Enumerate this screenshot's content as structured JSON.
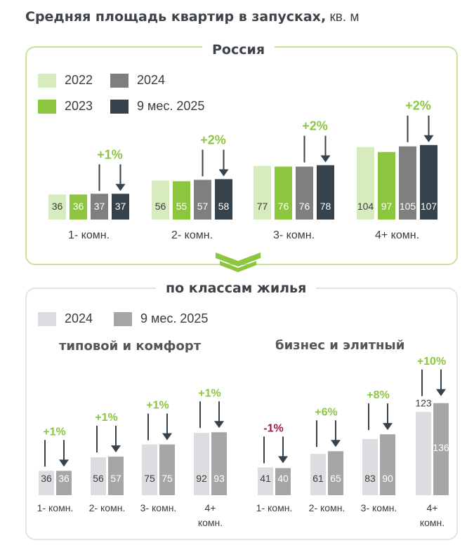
{
  "title": {
    "bold": "Средняя площадь квартир в запусках,",
    "unit": " кв. м"
  },
  "russia": {
    "title": "Россия",
    "legend": [
      {
        "label": "2022",
        "color": "#d7ecbe"
      },
      {
        "label": "2024",
        "color": "#7f7f7f"
      },
      {
        "label": "2023",
        "color": "#8cc63f"
      },
      {
        "label": "9 мес. 2025",
        "color": "#36434d"
      }
    ]
  },
  "classes": {
    "title": "по классам жилья",
    "legend": [
      {
        "label": "2024",
        "color": "#dcdde0"
      },
      {
        "label": "9 мес. 2025",
        "color": "#a6a6a6"
      }
    ],
    "sub1": "типовой и комфорт",
    "sub2": "бизнес и элитный"
  },
  "colors": {
    "positive": "#8cc63f",
    "negative": "#9b1c46",
    "arrow": "#36434d",
    "panel_border": "#c5e29c"
  },
  "chart_data": [
    {
      "type": "bar",
      "title": "Россия",
      "categories": [
        "1- комн.",
        "2- комн.",
        "3- комн.",
        "4+ комн."
      ],
      "series": [
        {
          "name": "2022",
          "values": [
            36,
            56,
            77,
            104
          ]
        },
        {
          "name": "2023",
          "values": [
            36,
            55,
            76,
            97
          ]
        },
        {
          "name": "2024",
          "values": [
            37,
            57,
            76,
            105
          ]
        },
        {
          "name": "9 мес. 2025",
          "values": [
            37,
            58,
            78,
            107
          ]
        }
      ],
      "changes": [
        "+1%",
        "+2%",
        "+2%",
        "+2%"
      ]
    },
    {
      "type": "bar",
      "title": "типовой и комфорт",
      "categories": [
        "1- комн.",
        "2- комн.",
        "3- комн.",
        "4+ комн."
      ],
      "series": [
        {
          "name": "2024",
          "values": [
            36,
            56,
            75,
            92
          ]
        },
        {
          "name": "9 мес. 2025",
          "values": [
            36,
            57,
            75,
            93
          ]
        }
      ],
      "changes": [
        "+1%",
        "+1%",
        "+1%",
        "+1%"
      ]
    },
    {
      "type": "bar",
      "title": "бизнес и элитный",
      "categories": [
        "1- комн.",
        "2- комн.",
        "3- комн.",
        "4+ комн."
      ],
      "series": [
        {
          "name": "2024",
          "values": [
            41,
            61,
            83,
            123
          ]
        },
        {
          "name": "9 мес. 2025",
          "values": [
            40,
            65,
            90,
            136
          ]
        }
      ],
      "changes": [
        "-1%",
        "+6%",
        "+8%",
        "+10%"
      ]
    }
  ]
}
